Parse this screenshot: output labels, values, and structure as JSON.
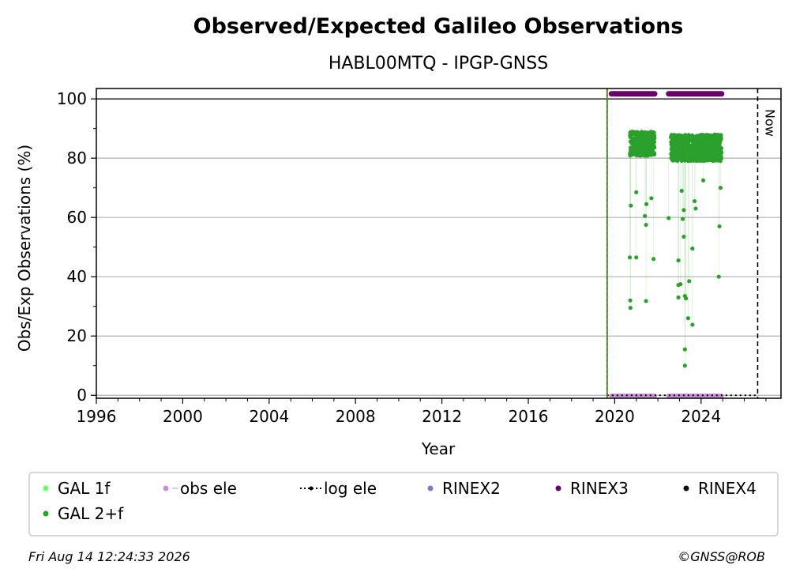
{
  "chart_data": {
    "type": "scatter",
    "title": "Observed/Expected Galileo Observations",
    "subtitle": "HABL00MTQ - IPGP-GNSS",
    "xlabel": "Year",
    "ylabel": "Obs/Exp Observations (%)",
    "xlim": [
      1996,
      2027.7
    ],
    "ylim": [
      -1,
      103.5
    ],
    "x_ticks": [
      "1996",
      "2000",
      "2004",
      "2008",
      "2012",
      "2016",
      "2020",
      "2024"
    ],
    "y_ticks": [
      "0",
      "20",
      "40",
      "60",
      "80",
      "100"
    ],
    "grid": "horizontal",
    "reference_line_y": 100,
    "now_marker": {
      "x": 2026.62,
      "label": "Now"
    },
    "station_start_x": 2019.65,
    "series": [
      {
        "name": "GAL 2+f",
        "color": "#2ca02c",
        "segments": [
          {
            "x_start": 2020.7,
            "x_end": 2021.85,
            "typical_low": 78,
            "typical_high": 89
          },
          {
            "x_start": 2022.6,
            "x_end": 2024.95,
            "typical_low": 76,
            "typical_high": 88
          }
        ],
        "outliers": [
          {
            "x": 2020.75,
            "y": 64
          },
          {
            "x": 2020.7,
            "y": 46.5
          },
          {
            "x": 2020.72,
            "y": 32
          },
          {
            "x": 2020.73,
            "y": 29.5
          },
          {
            "x": 2021.0,
            "y": 68.5
          },
          {
            "x": 2021.0,
            "y": 46.5
          },
          {
            "x": 2021.4,
            "y": 60.5
          },
          {
            "x": 2021.45,
            "y": 57.5
          },
          {
            "x": 2021.47,
            "y": 64.5
          },
          {
            "x": 2021.45,
            "y": 31.8
          },
          {
            "x": 2021.7,
            "y": 66.5
          },
          {
            "x": 2021.8,
            "y": 46
          },
          {
            "x": 2022.5,
            "y": 59.8
          },
          {
            "x": 2022.95,
            "y": 45.5
          },
          {
            "x": 2022.95,
            "y": 37.2
          },
          {
            "x": 2023.05,
            "y": 37.5
          },
          {
            "x": 2022.95,
            "y": 33
          },
          {
            "x": 2023.15,
            "y": 59.5
          },
          {
            "x": 2023.2,
            "y": 62.5
          },
          {
            "x": 2023.2,
            "y": 53.5
          },
          {
            "x": 2023.25,
            "y": 33.5
          },
          {
            "x": 2023.3,
            "y": 32.7
          },
          {
            "x": 2023.25,
            "y": 15.5
          },
          {
            "x": 2023.25,
            "y": 10
          },
          {
            "x": 2023.45,
            "y": 38.5
          },
          {
            "x": 2023.4,
            "y": 26
          },
          {
            "x": 2023.6,
            "y": 49.5
          },
          {
            "x": 2023.6,
            "y": 23.8
          },
          {
            "x": 2023.7,
            "y": 65.5
          },
          {
            "x": 2023.75,
            "y": 63
          },
          {
            "x": 2023.1,
            "y": 69
          },
          {
            "x": 2024.85,
            "y": 57
          },
          {
            "x": 2024.82,
            "y": 40
          },
          {
            "x": 2024.9,
            "y": 70
          },
          {
            "x": 2024.1,
            "y": 72.5
          }
        ]
      },
      {
        "name": "RINEX3",
        "color": "#6a006a",
        "y": 101.7,
        "ranges": [
          [
            2019.85,
            2021.85
          ],
          [
            2022.5,
            2024.95
          ]
        ]
      },
      {
        "name": "obs ele",
        "color": "#c78fd3",
        "y": 0,
        "ranges": [
          [
            2019.85,
            2021.85
          ],
          [
            2022.5,
            2024.95
          ]
        ]
      },
      {
        "name": "log ele",
        "color": "#000000",
        "y": 0,
        "ranges": [
          [
            2019.65,
            2026.62
          ]
        ]
      }
    ],
    "legend": {
      "placement": "bottom",
      "entries": [
        {
          "label": "GAL 1f",
          "color": "#66ff66",
          "style": "dot"
        },
        {
          "label": "obs ele",
          "color": "#c78fd3",
          "style": "line-dot"
        },
        {
          "label": "log ele",
          "color": "#000000",
          "style": "dotted-line-dot"
        },
        {
          "label": "RINEX2",
          "color": "#8878c0",
          "style": "dot"
        },
        {
          "label": "RINEX3",
          "color": "#6a006a",
          "style": "dot"
        },
        {
          "label": "RINEX4",
          "color": "#1a0020",
          "style": "dot"
        },
        {
          "label": "GAL 2+f",
          "color": "#2ca02c",
          "style": "dot"
        }
      ]
    }
  },
  "footer": {
    "timestamp": "Fri Aug 14 12:24:33 2026",
    "credit": "©GNSS@ROB"
  }
}
